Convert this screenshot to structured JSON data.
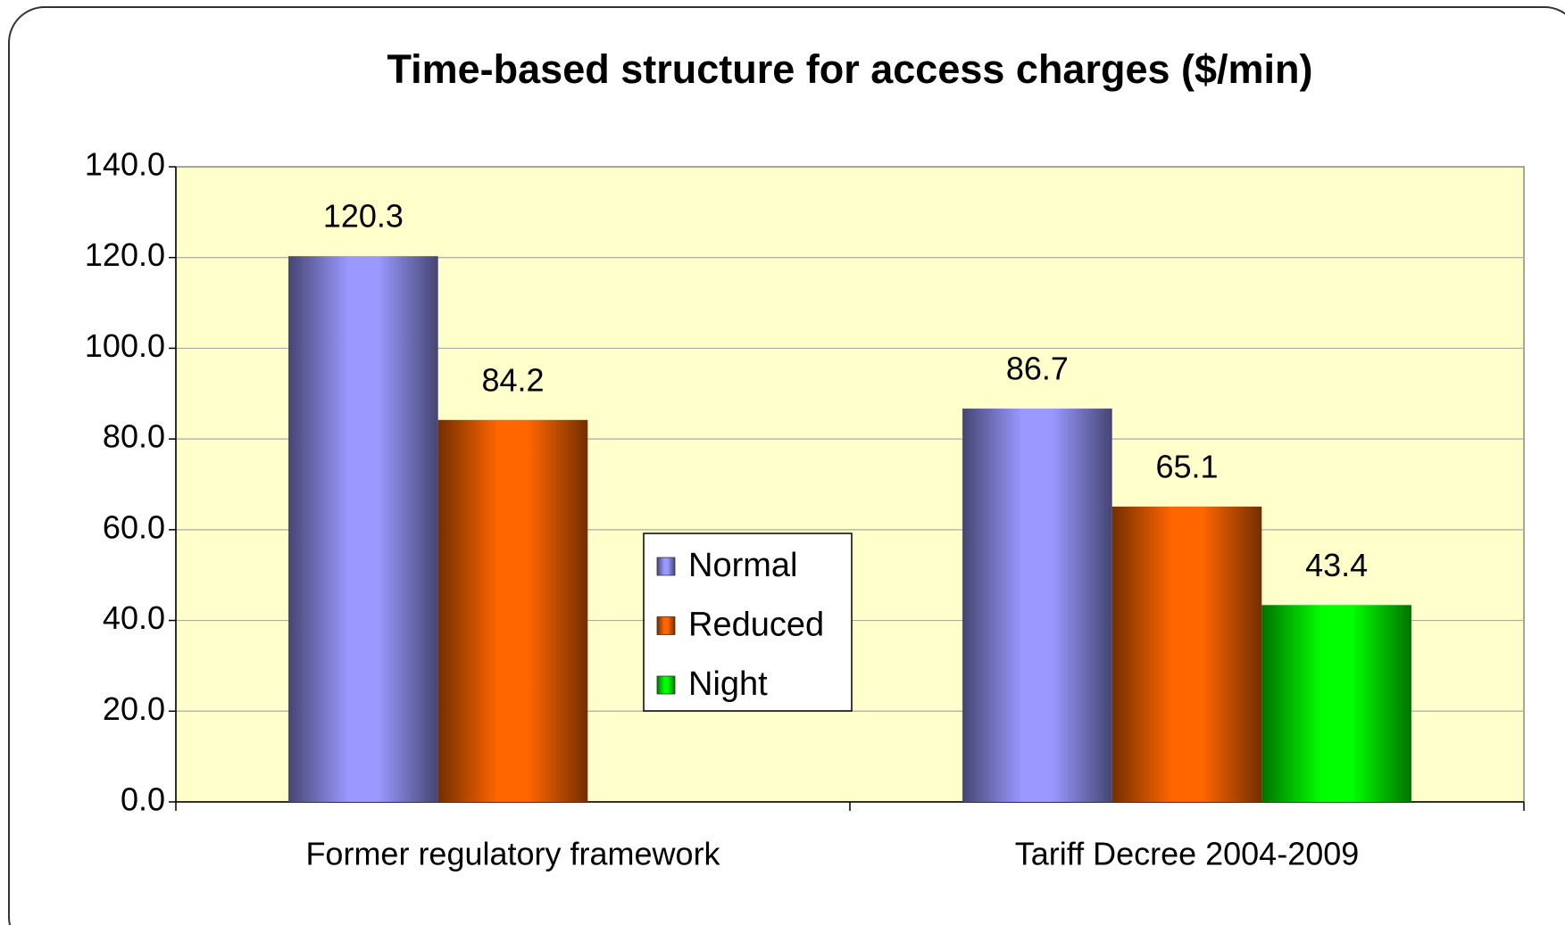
{
  "chart_data": {
    "type": "bar",
    "title": "Time-based structure for access charges ($/min)",
    "categories": [
      "Former regulatory framework",
      "Tariff Decree 2004-2009"
    ],
    "series": [
      {
        "name": "Normal",
        "color": "#9999ff",
        "values": [
          120.3,
          86.7
        ]
      },
      {
        "name": "Reduced",
        "color": "#ff6600",
        "values": [
          84.2,
          65.1
        ]
      },
      {
        "name": "Night",
        "color": "#00ff00",
        "values": [
          null,
          43.4
        ]
      }
    ],
    "ylim": [
      0,
      140
    ],
    "yticks": [
      {
        "value": 0,
        "label": "0.0"
      },
      {
        "value": 20,
        "label": "20.0"
      },
      {
        "value": 40,
        "label": "40.0"
      },
      {
        "value": 60,
        "label": "60.0"
      },
      {
        "value": 80,
        "label": "80.0"
      },
      {
        "value": 100,
        "label": "100.0"
      },
      {
        "value": 120,
        "label": "120.0"
      },
      {
        "value": 140,
        "label": "140.0"
      }
    ],
    "grid": true,
    "legend": "center"
  }
}
